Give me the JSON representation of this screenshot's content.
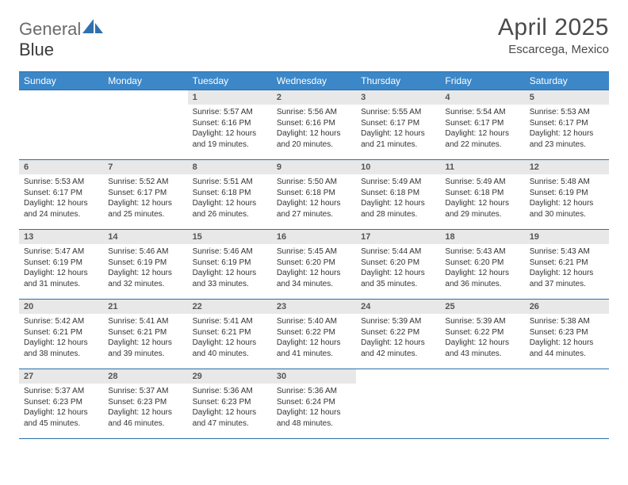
{
  "logo": {
    "text1": "General",
    "text2": "Blue"
  },
  "title": "April 2025",
  "subtitle": "Escarcega, Mexico",
  "weekdays": [
    "Sunday",
    "Monday",
    "Tuesday",
    "Wednesday",
    "Thursday",
    "Friday",
    "Saturday"
  ],
  "colors": {
    "header_bg": "#3b87c8",
    "header_border": "#2d6fa8",
    "daynum_bg": "#e8e8e8",
    "logo_accent": "#2f71ae"
  },
  "grid": [
    [
      {
        "day": "",
        "sunrise": "",
        "sunset": "",
        "daylight": ""
      },
      {
        "day": "",
        "sunrise": "",
        "sunset": "",
        "daylight": ""
      },
      {
        "day": "1",
        "sunrise": "Sunrise: 5:57 AM",
        "sunset": "Sunset: 6:16 PM",
        "daylight": "Daylight: 12 hours and 19 minutes."
      },
      {
        "day": "2",
        "sunrise": "Sunrise: 5:56 AM",
        "sunset": "Sunset: 6:16 PM",
        "daylight": "Daylight: 12 hours and 20 minutes."
      },
      {
        "day": "3",
        "sunrise": "Sunrise: 5:55 AM",
        "sunset": "Sunset: 6:17 PM",
        "daylight": "Daylight: 12 hours and 21 minutes."
      },
      {
        "day": "4",
        "sunrise": "Sunrise: 5:54 AM",
        "sunset": "Sunset: 6:17 PM",
        "daylight": "Daylight: 12 hours and 22 minutes."
      },
      {
        "day": "5",
        "sunrise": "Sunrise: 5:53 AM",
        "sunset": "Sunset: 6:17 PM",
        "daylight": "Daylight: 12 hours and 23 minutes."
      }
    ],
    [
      {
        "day": "6",
        "sunrise": "Sunrise: 5:53 AM",
        "sunset": "Sunset: 6:17 PM",
        "daylight": "Daylight: 12 hours and 24 minutes."
      },
      {
        "day": "7",
        "sunrise": "Sunrise: 5:52 AM",
        "sunset": "Sunset: 6:17 PM",
        "daylight": "Daylight: 12 hours and 25 minutes."
      },
      {
        "day": "8",
        "sunrise": "Sunrise: 5:51 AM",
        "sunset": "Sunset: 6:18 PM",
        "daylight": "Daylight: 12 hours and 26 minutes."
      },
      {
        "day": "9",
        "sunrise": "Sunrise: 5:50 AM",
        "sunset": "Sunset: 6:18 PM",
        "daylight": "Daylight: 12 hours and 27 minutes."
      },
      {
        "day": "10",
        "sunrise": "Sunrise: 5:49 AM",
        "sunset": "Sunset: 6:18 PM",
        "daylight": "Daylight: 12 hours and 28 minutes."
      },
      {
        "day": "11",
        "sunrise": "Sunrise: 5:49 AM",
        "sunset": "Sunset: 6:18 PM",
        "daylight": "Daylight: 12 hours and 29 minutes."
      },
      {
        "day": "12",
        "sunrise": "Sunrise: 5:48 AM",
        "sunset": "Sunset: 6:19 PM",
        "daylight": "Daylight: 12 hours and 30 minutes."
      }
    ],
    [
      {
        "day": "13",
        "sunrise": "Sunrise: 5:47 AM",
        "sunset": "Sunset: 6:19 PM",
        "daylight": "Daylight: 12 hours and 31 minutes."
      },
      {
        "day": "14",
        "sunrise": "Sunrise: 5:46 AM",
        "sunset": "Sunset: 6:19 PM",
        "daylight": "Daylight: 12 hours and 32 minutes."
      },
      {
        "day": "15",
        "sunrise": "Sunrise: 5:46 AM",
        "sunset": "Sunset: 6:19 PM",
        "daylight": "Daylight: 12 hours and 33 minutes."
      },
      {
        "day": "16",
        "sunrise": "Sunrise: 5:45 AM",
        "sunset": "Sunset: 6:20 PM",
        "daylight": "Daylight: 12 hours and 34 minutes."
      },
      {
        "day": "17",
        "sunrise": "Sunrise: 5:44 AM",
        "sunset": "Sunset: 6:20 PM",
        "daylight": "Daylight: 12 hours and 35 minutes."
      },
      {
        "day": "18",
        "sunrise": "Sunrise: 5:43 AM",
        "sunset": "Sunset: 6:20 PM",
        "daylight": "Daylight: 12 hours and 36 minutes."
      },
      {
        "day": "19",
        "sunrise": "Sunrise: 5:43 AM",
        "sunset": "Sunset: 6:21 PM",
        "daylight": "Daylight: 12 hours and 37 minutes."
      }
    ],
    [
      {
        "day": "20",
        "sunrise": "Sunrise: 5:42 AM",
        "sunset": "Sunset: 6:21 PM",
        "daylight": "Daylight: 12 hours and 38 minutes."
      },
      {
        "day": "21",
        "sunrise": "Sunrise: 5:41 AM",
        "sunset": "Sunset: 6:21 PM",
        "daylight": "Daylight: 12 hours and 39 minutes."
      },
      {
        "day": "22",
        "sunrise": "Sunrise: 5:41 AM",
        "sunset": "Sunset: 6:21 PM",
        "daylight": "Daylight: 12 hours and 40 minutes."
      },
      {
        "day": "23",
        "sunrise": "Sunrise: 5:40 AM",
        "sunset": "Sunset: 6:22 PM",
        "daylight": "Daylight: 12 hours and 41 minutes."
      },
      {
        "day": "24",
        "sunrise": "Sunrise: 5:39 AM",
        "sunset": "Sunset: 6:22 PM",
        "daylight": "Daylight: 12 hours and 42 minutes."
      },
      {
        "day": "25",
        "sunrise": "Sunrise: 5:39 AM",
        "sunset": "Sunset: 6:22 PM",
        "daylight": "Daylight: 12 hours and 43 minutes."
      },
      {
        "day": "26",
        "sunrise": "Sunrise: 5:38 AM",
        "sunset": "Sunset: 6:23 PM",
        "daylight": "Daylight: 12 hours and 44 minutes."
      }
    ],
    [
      {
        "day": "27",
        "sunrise": "Sunrise: 5:37 AM",
        "sunset": "Sunset: 6:23 PM",
        "daylight": "Daylight: 12 hours and 45 minutes."
      },
      {
        "day": "28",
        "sunrise": "Sunrise: 5:37 AM",
        "sunset": "Sunset: 6:23 PM",
        "daylight": "Daylight: 12 hours and 46 minutes."
      },
      {
        "day": "29",
        "sunrise": "Sunrise: 5:36 AM",
        "sunset": "Sunset: 6:23 PM",
        "daylight": "Daylight: 12 hours and 47 minutes."
      },
      {
        "day": "30",
        "sunrise": "Sunrise: 5:36 AM",
        "sunset": "Sunset: 6:24 PM",
        "daylight": "Daylight: 12 hours and 48 minutes."
      },
      {
        "day": "",
        "sunrise": "",
        "sunset": "",
        "daylight": ""
      },
      {
        "day": "",
        "sunrise": "",
        "sunset": "",
        "daylight": ""
      },
      {
        "day": "",
        "sunrise": "",
        "sunset": "",
        "daylight": ""
      }
    ]
  ]
}
